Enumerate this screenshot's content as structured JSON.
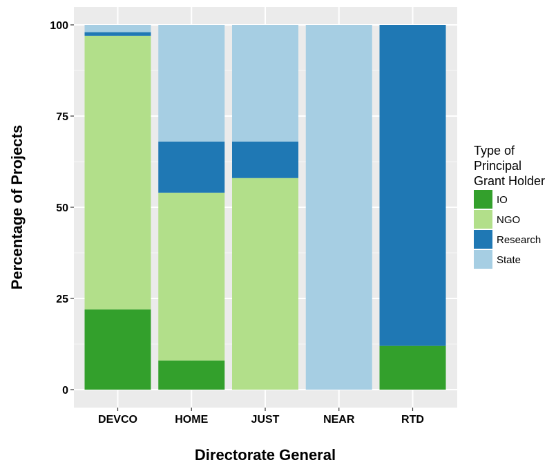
{
  "chart_data": {
    "type": "bar",
    "stacked": true,
    "categories": [
      "DEVCO",
      "HOME",
      "JUST",
      "NEAR",
      "RTD"
    ],
    "series": [
      {
        "name": "IO",
        "color": "#33a02c",
        "values": [
          22,
          8,
          0,
          0,
          12
        ]
      },
      {
        "name": "NGO",
        "color": "#b2df8a",
        "values": [
          75,
          46,
          58,
          0,
          0
        ]
      },
      {
        "name": "Research",
        "color": "#1f78b4",
        "values": [
          1,
          14,
          10,
          0,
          88
        ]
      },
      {
        "name": "State",
        "color": "#a6cee3",
        "values": [
          2,
          32,
          32,
          100,
          0
        ]
      }
    ],
    "xlabel": "Directorate General",
    "ylabel": "Percentage of Projects",
    "ylim": [
      0,
      100
    ],
    "yticks": [
      0,
      25,
      50,
      75,
      100
    ],
    "grid": true,
    "panel_background": "#ebebeb",
    "legend": {
      "title": "Type of\nPrincipal\nGrant Holder",
      "placement": "right"
    }
  }
}
